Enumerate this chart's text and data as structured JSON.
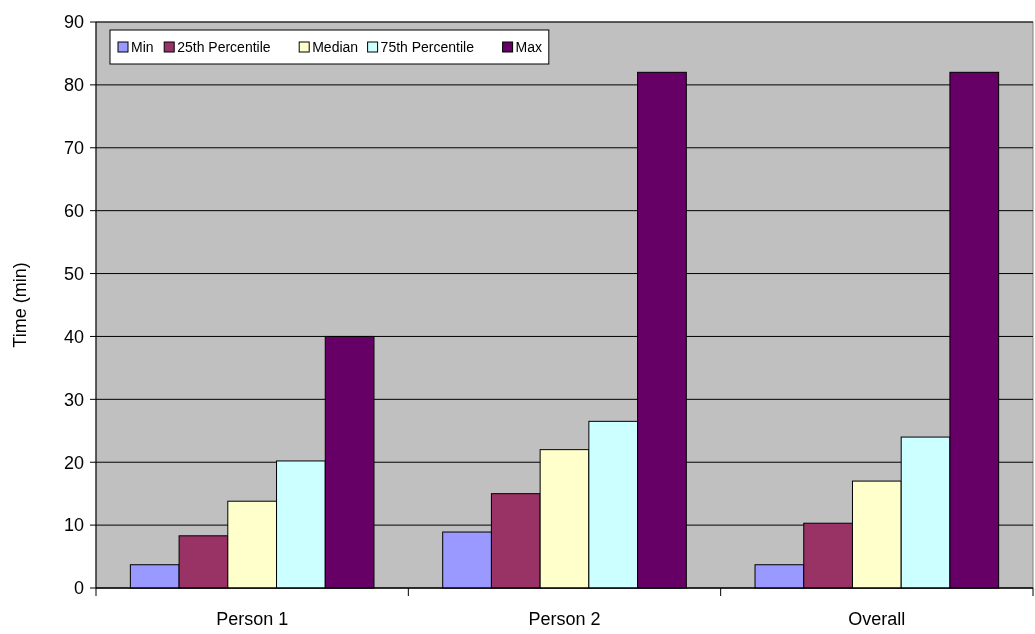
{
  "chart_data": {
    "type": "bar",
    "ylabel": "Time (min)",
    "categories": [
      "Person 1",
      "Person 2",
      "Overall"
    ],
    "series": [
      {
        "name": "Min",
        "color": "#9999ff",
        "values": [
          3.7,
          8.9,
          3.7
        ]
      },
      {
        "name": "25th Percentile",
        "color": "#993366",
        "values": [
          8.3,
          15,
          10.3
        ]
      },
      {
        "name": "Median",
        "color": "#ffffcc",
        "values": [
          13.8,
          22,
          17
        ]
      },
      {
        "name": "75th Percentile",
        "color": "#ccffff",
        "values": [
          20.2,
          26.5,
          24
        ]
      },
      {
        "name": "Max",
        "color": "#660066",
        "values": [
          40,
          82,
          82
        ]
      }
    ],
    "ylim": [
      0,
      90
    ],
    "yticks": [
      0,
      10,
      20,
      30,
      40,
      50,
      60,
      70,
      80,
      90
    ],
    "grid": "y",
    "legend": "top left"
  }
}
